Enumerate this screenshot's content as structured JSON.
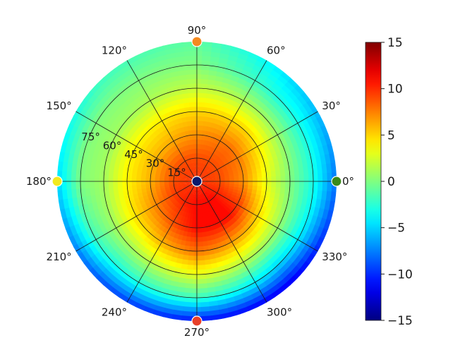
{
  "chart_data": {
    "type": "heatmap",
    "subtype": "polar",
    "title": "",
    "angle_ticks_deg": [
      0,
      30,
      60,
      90,
      120,
      150,
      180,
      210,
      240,
      270,
      300,
      330
    ],
    "angle_tick_labels": [
      "0°",
      "30°",
      "60°",
      "90°",
      "120°",
      "150°",
      "180°",
      "210°",
      "240°",
      "270°",
      "300°",
      "330°"
    ],
    "radial_ticks_deg": [
      15,
      30,
      45,
      60,
      75
    ],
    "radial_tick_labels": [
      "15°",
      "30°",
      "45°",
      "60°",
      "75°"
    ],
    "radial_max_deg": 90,
    "grid": true,
    "colormap": "jet",
    "colorbar": {
      "min": -15,
      "max": 15,
      "ticks": [
        15,
        10,
        5,
        0,
        -5,
        -10,
        -15
      ],
      "tick_labels": [
        "15",
        "10",
        "5",
        "0",
        "−5",
        "−10",
        "−15"
      ],
      "placement": "right"
    },
    "field_samples": {
      "description_units": "value at (azimuth deg, zenith deg)",
      "center": {
        "zenith": 0,
        "value": 10
      },
      "rings": [
        {
          "zenith": 15,
          "az": [
            0,
            45,
            90,
            135,
            180,
            225,
            270,
            315
          ],
          "values": [
            9,
            9,
            9,
            9,
            9,
            10,
            11,
            11
          ]
        },
        {
          "zenith": 30,
          "az": [
            0,
            45,
            90,
            135,
            180,
            225,
            270,
            315
          ],
          "values": [
            7,
            8,
            7,
            6,
            6,
            8,
            11,
            11
          ]
        },
        {
          "zenith": 45,
          "az": [
            0,
            45,
            90,
            135,
            180,
            225,
            270,
            315
          ],
          "values": [
            3,
            5,
            5,
            4,
            4,
            5,
            8,
            6
          ]
        },
        {
          "zenith": 60,
          "az": [
            0,
            45,
            90,
            135,
            180,
            225,
            270,
            315
          ],
          "values": [
            0,
            1,
            2,
            1,
            1,
            1,
            3,
            1
          ]
        },
        {
          "zenith": 75,
          "az": [
            0,
            45,
            90,
            135,
            180,
            225,
            270,
            315
          ],
          "values": [
            -3,
            -3,
            0,
            0,
            0,
            -3,
            -2,
            -5
          ]
        },
        {
          "zenith": 90,
          "az": [
            0,
            45,
            90,
            135,
            180,
            225,
            270,
            315
          ],
          "values": [
            -8,
            -5,
            -1,
            -2,
            -5,
            -9,
            -11,
            -12
          ]
        }
      ]
    },
    "markers": [
      {
        "azimuth": 0,
        "zenith": 90,
        "value": 0,
        "color": "#3a8a1a"
      },
      {
        "azimuth": 90,
        "zenith": 90,
        "value": 8,
        "color": "#f58a1f"
      },
      {
        "azimuth": 180,
        "zenith": 90,
        "value": 5,
        "color": "#f2ea20"
      },
      {
        "azimuth": 270,
        "zenith": 90,
        "value": 12,
        "color": "#e8402a"
      },
      {
        "azimuth": 0,
        "zenith": 0,
        "value": -15,
        "color": "#0a1a6e"
      }
    ]
  }
}
